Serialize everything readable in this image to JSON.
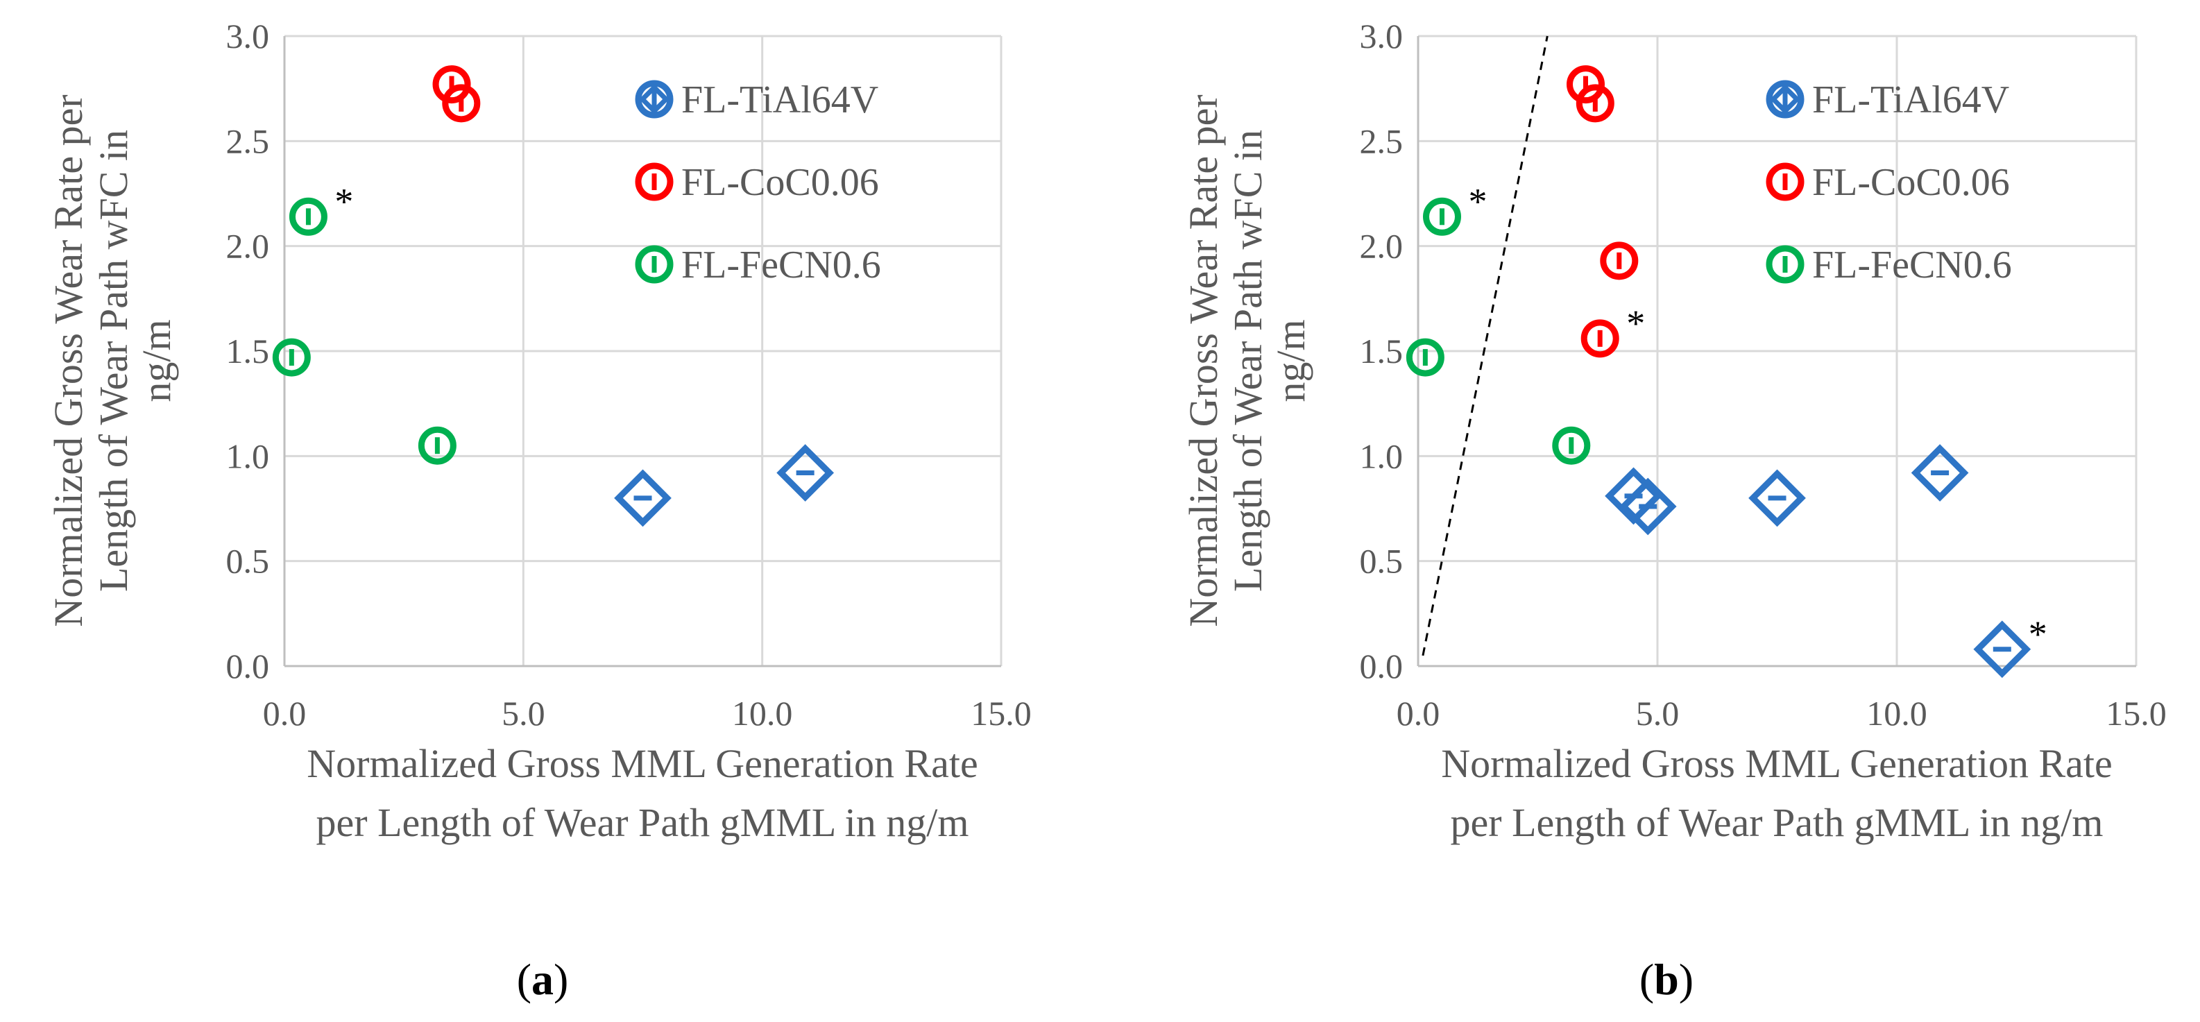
{
  "chart_data": [
    {
      "type": "scatter",
      "panel_label_open": "(",
      "panel_label_letter": "a",
      "panel_label_close": ")",
      "xlabel_line1": "Normalized Gross MML Generation Rate",
      "xlabel_line2": "per Length of Wear Path gMML in ng/m",
      "ylabel_line1": "Normalized Gross Wear Rate per",
      "ylabel_line2": "Length of Wear Path wFC in",
      "ylabel_line3": "ng/m",
      "xlim": [
        0,
        15
      ],
      "ylim": [
        0,
        3
      ],
      "x_ticks": [
        "0.0",
        "5.0",
        "10.0",
        "15.0"
      ],
      "y_ticks": [
        "0.0",
        "0.5",
        "1.0",
        "1.5",
        "2.0",
        "2.5",
        "3.0"
      ],
      "grid": true,
      "legend_position": "top-right",
      "series": [
        {
          "name": "FL-TiAl64V",
          "marker": "diamond",
          "color": "#2e75c6",
          "points": [
            [
              7.5,
              0.8,
              0
            ],
            [
              10.9,
              0.92,
              0
            ]
          ]
        },
        {
          "name": "FL-CoC0.06",
          "marker": "circle",
          "color": "#ff0000",
          "points": [
            [
              3.5,
              2.77,
              0
            ],
            [
              3.7,
              2.68,
              0
            ]
          ]
        },
        {
          "name": "FL-FeCN0.6",
          "marker": "circle",
          "color": "#00b050",
          "points": [
            [
              0.5,
              2.14,
              1
            ],
            [
              0.15,
              1.47,
              0
            ],
            [
              3.2,
              1.05,
              0
            ]
          ]
        }
      ],
      "annotation_mark": "*",
      "reference_line": null
    },
    {
      "type": "scatter",
      "panel_label_open": "(",
      "panel_label_letter": "b",
      "panel_label_close": ")",
      "xlabel_line1": "Normalized Gross MML Generation Rate",
      "xlabel_line2": "per Length of Wear Path gMML in ng/m",
      "ylabel_line1": "Normalized Gross Wear Rate per",
      "ylabel_line2": "Length of Wear Path wFC in",
      "ylabel_line3": "ng/m",
      "xlim": [
        0,
        15
      ],
      "ylim": [
        0,
        3
      ],
      "x_ticks": [
        "0.0",
        "5.0",
        "10.0",
        "15.0"
      ],
      "y_ticks": [
        "0.0",
        "0.5",
        "1.0",
        "1.5",
        "2.0",
        "2.5",
        "3.0"
      ],
      "grid": true,
      "legend_position": "top-right",
      "series": [
        {
          "name": "FL-TiAl64V",
          "marker": "diamond",
          "color": "#2e75c6",
          "points": [
            [
              4.5,
              0.81,
              0
            ],
            [
              4.8,
              0.76,
              0
            ],
            [
              7.5,
              0.8,
              0
            ],
            [
              10.9,
              0.92,
              0
            ],
            [
              12.2,
              0.08,
              1
            ]
          ]
        },
        {
          "name": "FL-CoC0.06",
          "marker": "circle",
          "color": "#ff0000",
          "points": [
            [
              3.5,
              2.77,
              0
            ],
            [
              3.7,
              2.68,
              0
            ],
            [
              4.2,
              1.93,
              0
            ],
            [
              3.8,
              1.56,
              1
            ]
          ]
        },
        {
          "name": "FL-FeCN0.6",
          "marker": "circle",
          "color": "#00b050",
          "points": [
            [
              0.5,
              2.14,
              1
            ],
            [
              0.15,
              1.47,
              0
            ],
            [
              3.2,
              1.05,
              0
            ]
          ]
        }
      ],
      "annotation_mark": "*",
      "reference_line": [
        [
          0.1,
          0.05
        ],
        [
          2.7,
          3.0
        ]
      ]
    }
  ]
}
